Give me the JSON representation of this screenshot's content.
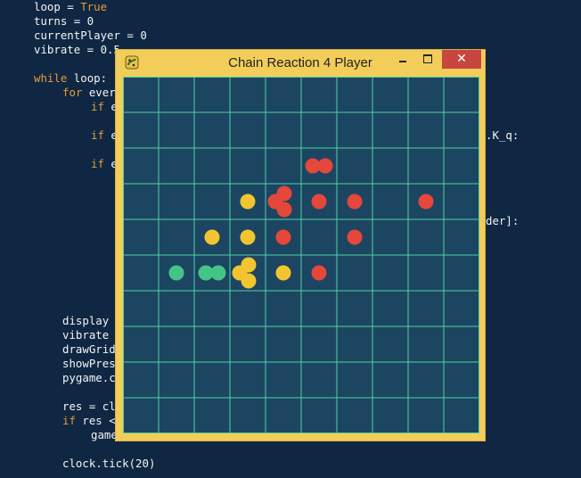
{
  "editor": {
    "lines": [
      {
        "text": "loop = ",
        "highlight": "True"
      },
      {
        "text": "turns = 0"
      },
      {
        "text": "currentPlayer = 0"
      },
      {
        "text": "vibrate = 0.5"
      },
      {
        "text": ""
      },
      {
        "keyword": "while",
        "text": " loop:"
      },
      {
        "keyword": "for",
        "text": " ever",
        "indent": 1
      },
      {
        "keyword": "if",
        "text": " e",
        "indent": 2
      },
      {
        "text": ""
      },
      {
        "keyword": "if",
        "text": " e",
        "indent": 2
      },
      {
        "text": ""
      },
      {
        "keyword": "if",
        "text": " e",
        "indent": 2
      },
      {
        "text": ""
      },
      {
        "text": ""
      },
      {
        "text": ""
      },
      {
        "text": ""
      },
      {
        "text": ""
      },
      {
        "text": ""
      },
      {
        "text": ""
      },
      {
        "text": ""
      },
      {
        "text": ""
      },
      {
        "text": ""
      },
      {
        "text": "display",
        "indent": 1
      },
      {
        "text": "vibrate",
        "indent": 1
      },
      {
        "text": "drawGrid",
        "indent": 1
      },
      {
        "text": "showPres",
        "indent": 1
      },
      {
        "text": "pygame.c",
        "indent": 1
      },
      {
        "text": ""
      },
      {
        "text": "res = cl",
        "indent": 1
      },
      {
        "keyword": "if",
        "text": " res <",
        "indent": 1
      },
      {
        "text": "game",
        "indent": 2
      },
      {
        "text": ""
      },
      {
        "text": "clock.tick(20)",
        "indent": 1
      }
    ],
    "right_fragments": [
      {
        "text": ".K_q:",
        "line": 9
      },
      {
        "text": "der]:",
        "line": 15
      }
    ]
  },
  "window": {
    "title": "Chain Reaction 4 Player",
    "close_glyph": "✕",
    "icon": "pygame-snake-icon"
  },
  "board": {
    "rows": 10,
    "cols": 10,
    "colors": {
      "background": "#1c4562",
      "grid": "#4fd1a1",
      "red": "#e5473b",
      "yellow": "#f2c530",
      "green": "#45c585"
    },
    "cells": [
      {
        "row": 2,
        "col": 5,
        "player": "red",
        "count": 2
      },
      {
        "row": 3,
        "col": 3,
        "player": "yellow",
        "count": 1
      },
      {
        "row": 3,
        "col": 4,
        "player": "red",
        "count": 3
      },
      {
        "row": 3,
        "col": 5,
        "player": "red",
        "count": 1
      },
      {
        "row": 3,
        "col": 6,
        "player": "red",
        "count": 1
      },
      {
        "row": 3,
        "col": 8,
        "player": "red",
        "count": 1
      },
      {
        "row": 4,
        "col": 2,
        "player": "yellow",
        "count": 1
      },
      {
        "row": 4,
        "col": 3,
        "player": "yellow",
        "count": 1
      },
      {
        "row": 4,
        "col": 4,
        "player": "red",
        "count": 1
      },
      {
        "row": 4,
        "col": 6,
        "player": "red",
        "count": 1
      },
      {
        "row": 5,
        "col": 1,
        "player": "green",
        "count": 1
      },
      {
        "row": 5,
        "col": 2,
        "player": "green",
        "count": 2
      },
      {
        "row": 5,
        "col": 3,
        "player": "yellow",
        "count": 3
      },
      {
        "row": 5,
        "col": 4,
        "player": "yellow",
        "count": 1
      },
      {
        "row": 5,
        "col": 5,
        "player": "red",
        "count": 1
      }
    ]
  }
}
